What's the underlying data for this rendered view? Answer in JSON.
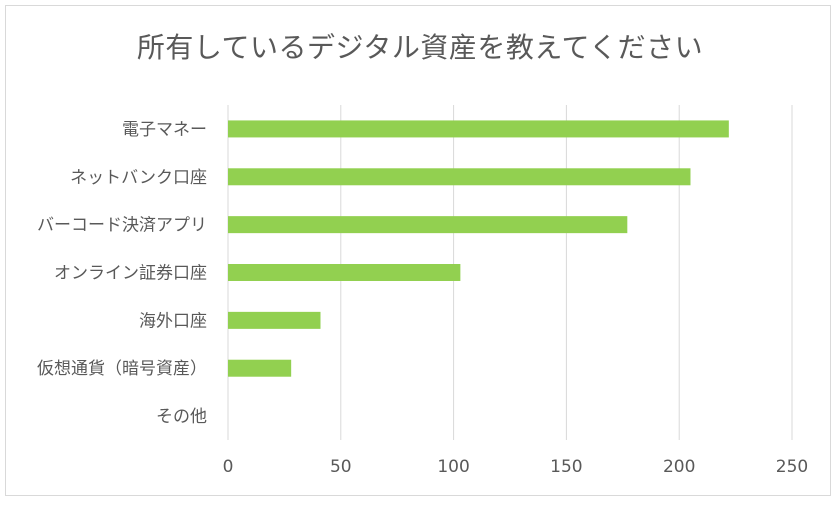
{
  "chart_data": {
    "type": "bar",
    "orientation": "horizontal",
    "title": "所有しているデジタル資産を教えてください",
    "categories": [
      "電子マネー",
      "ネットバンク口座",
      "バーコード決済アプリ",
      "オンライン証券口座",
      "海外口座",
      "仮想通貨（暗号資産）",
      "その他"
    ],
    "values": [
      222,
      205,
      177,
      103,
      41,
      28,
      0
    ],
    "xlim": [
      0,
      250
    ],
    "xticks": [
      "0",
      "50",
      "100",
      "150",
      "200",
      "250"
    ],
    "xlabel": "",
    "ylabel": "",
    "grid": "vertical",
    "legend": "none",
    "bar_color": "#92d050"
  }
}
